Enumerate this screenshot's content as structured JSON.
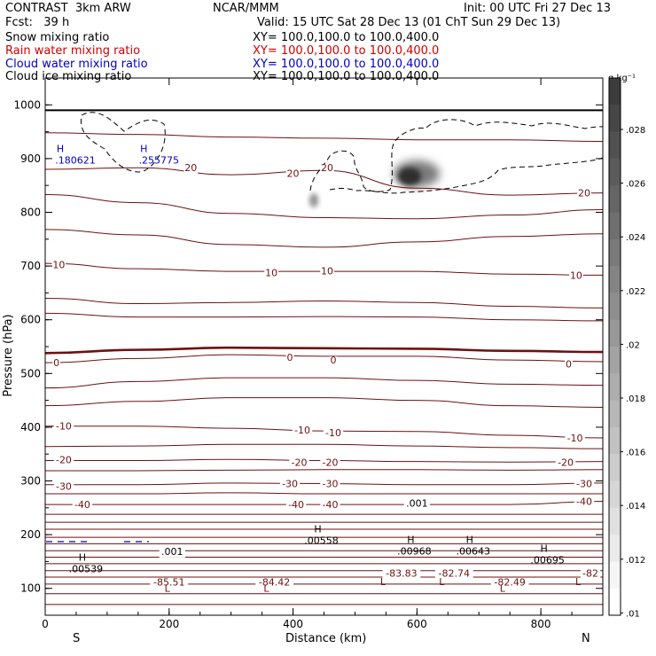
{
  "header": {
    "left1": "CONTRAST  3km ARW",
    "left2": "Fcst:   39 h",
    "center1": "NCAR/MMM",
    "init": "Init: 00 UTC Fri 27 Dec 13",
    "valid": "Valid: 15 UTC Sat 28 Dec 13 (01 ChT Sun 29 Dec 13)"
  },
  "fields": [
    {
      "name": "Snow mixing ratio",
      "xy": "XY= 100.0,100.0 to 100.0,400.0",
      "color": "#000000"
    },
    {
      "name": "Rain water mixing ratio",
      "xy": "XY= 100.0,100.0 to 100.0,400.0",
      "color": "#d00000"
    },
    {
      "name": "Cloud water mixing ratio",
      "xy": "XY= 100.0,100.0 to 100.0,400.0",
      "color": "#0000c8"
    },
    {
      "name": "Cloud ice mixing ratio",
      "xy": "XY= 100.0,100.0 to 100.0,400.0",
      "color": "#000000"
    }
  ],
  "chart_data": {
    "type": "contour",
    "xlabel": "Distance (km)",
    "ylabel": "Pressure (hPa)",
    "xlim": [
      0,
      900
    ],
    "ylim": [
      1050,
      50
    ],
    "x_ticks": [
      0,
      200,
      400,
      600,
      800
    ],
    "y_ticks": [
      100,
      200,
      300,
      400,
      500,
      600,
      700,
      800,
      900,
      1000
    ],
    "x_end_labels": {
      "left": "S",
      "right": "N"
    },
    "colorbar": {
      "unit": "g kg⁻¹",
      "ticks": [
        ".028",
        ".026",
        ".024",
        ".022",
        ".02",
        ".018",
        ".016",
        ".014",
        ".012",
        ".01"
      ]
    },
    "temperature_contour_labels": [
      {
        "text": "-85.51",
        "x": 200,
        "p": 112
      },
      {
        "text": "-84.42",
        "x": 370,
        "p": 112
      },
      {
        "text": "-83.83",
        "x": 575,
        "p": 128
      },
      {
        "text": "-82.74",
        "x": 660,
        "p": 128
      },
      {
        "text": "-82.49",
        "x": 750,
        "p": 112
      },
      {
        "text": "-82",
        "x": 880,
        "p": 128
      },
      {
        "text": "-40",
        "x": 60,
        "p": 256
      },
      {
        "text": "-40",
        "x": 405,
        "p": 256
      },
      {
        "text": "-40",
        "x": 460,
        "p": 256
      },
      {
        "text": "-40",
        "x": 870,
        "p": 262
      },
      {
        "text": "-30",
        "x": 30,
        "p": 290
      },
      {
        "text": "-30",
        "x": 395,
        "p": 295
      },
      {
        "text": "-30",
        "x": 460,
        "p": 295
      },
      {
        "text": "-30",
        "x": 870,
        "p": 295
      },
      {
        "text": "-20",
        "x": 30,
        "p": 340
      },
      {
        "text": "-20",
        "x": 410,
        "p": 335
      },
      {
        "text": "-20",
        "x": 460,
        "p": 335
      },
      {
        "text": "-20",
        "x": 840,
        "p": 335
      },
      {
        "text": "-10",
        "x": 30,
        "p": 402
      },
      {
        "text": "-10",
        "x": 415,
        "p": 395
      },
      {
        "text": "-10",
        "x": 465,
        "p": 390
      },
      {
        "text": "-10",
        "x": 855,
        "p": 380
      },
      {
        "text": "0",
        "x": 18,
        "p": 520
      },
      {
        "text": "0",
        "x": 395,
        "p": 530
      },
      {
        "text": "0",
        "x": 465,
        "p": 525
      },
      {
        "text": "0",
        "x": 845,
        "p": 518
      },
      {
        "text": "10",
        "x": 22,
        "p": 703
      },
      {
        "text": "10",
        "x": 365,
        "p": 688
      },
      {
        "text": "10",
        "x": 455,
        "p": 691
      },
      {
        "text": "10",
        "x": 857,
        "p": 683
      },
      {
        "text": "20",
        "x": 235,
        "p": 883
      },
      {
        "text": "20",
        "x": 400,
        "p": 873
      },
      {
        "text": "20",
        "x": 455,
        "p": 883
      },
      {
        "text": "20",
        "x": 870,
        "p": 836
      }
    ],
    "extrema_labels": [
      {
        "kind": "L",
        "x": 197,
        "p": 100
      },
      {
        "kind": "L",
        "x": 357,
        "p": 100
      },
      {
        "kind": "L",
        "x": 545,
        "p": 113
      },
      {
        "kind": "L",
        "x": 640,
        "p": 113
      },
      {
        "kind": "L",
        "x": 738,
        "p": 100
      },
      {
        "kind": "L",
        "x": 860,
        "p": 113
      },
      {
        "kind": "H",
        "value": ".00539",
        "x": 60,
        "p": 158
      },
      {
        "kind": "H",
        "value": ".00558",
        "x": 440,
        "p": 211
      },
      {
        "kind": "H",
        "value": ".00968",
        "x": 590,
        "p": 191
      },
      {
        "kind": "H",
        "value": ".00643",
        "x": 685,
        "p": 191
      },
      {
        "kind": "H",
        "value": ".00695",
        "x": 805,
        "p": 175
      }
    ],
    "ice_contour_labels": [
      {
        "text": ".001",
        "x": 205,
        "p": 169
      },
      {
        "text": ".001",
        "x": 600,
        "p": 259
      }
    ],
    "cloud_water_highs": [
      {
        "kind": "H",
        "value": ".180621",
        "x": 20,
        "p": 919
      },
      {
        "kind": "H",
        "value": ".255775",
        "x": 155,
        "p": 919
      }
    ],
    "isotherms_p_at": {
      "x": [
        0,
        150,
        300,
        450,
        600,
        750,
        900
      ],
      "lines": [
        [
          70,
          70,
          70,
          70,
          70,
          70,
          70
        ],
        [
          90,
          90,
          90,
          90,
          90,
          90,
          90
        ],
        [
          108,
          108,
          108,
          108,
          108,
          108,
          108
        ],
        [
          121,
          121,
          121,
          121,
          121,
          121,
          121
        ],
        [
          133,
          133,
          133,
          133,
          133,
          133,
          133
        ],
        [
          146,
          146,
          146,
          146,
          146,
          146,
          146
        ],
        [
          158,
          158,
          158,
          158,
          158,
          158,
          158
        ],
        [
          170,
          170,
          170,
          170,
          170,
          170,
          170
        ],
        [
          183,
          183,
          183,
          183,
          183,
          183,
          183
        ],
        [
          195,
          195,
          195,
          195,
          195,
          195,
          195
        ],
        [
          210,
          210,
          210,
          210,
          210,
          210,
          210
        ],
        [
          223,
          223,
          223,
          223,
          223,
          223,
          223
        ],
        [
          238,
          238,
          238,
          238,
          238,
          238,
          238
        ],
        [
          256,
          256,
          256,
          256,
          256,
          256,
          262
        ],
        [
          276,
          276,
          278,
          276,
          276,
          276,
          276
        ],
        [
          293,
          293,
          296,
          295,
          293,
          293,
          296
        ],
        [
          319,
          319,
          320,
          321,
          321,
          320,
          321
        ],
        [
          338,
          338,
          340,
          338,
          336,
          335,
          336
        ],
        [
          364,
          365,
          368,
          368,
          365,
          362,
          360
        ],
        [
          402,
          402,
          398,
          393,
          392,
          385,
          380
        ],
        [
          440,
          448,
          455,
          455,
          450,
          440,
          437
        ],
        [
          473,
          485,
          492,
          492,
          487,
          480,
          478
        ],
        [
          520,
          528,
          535,
          532,
          532,
          525,
          522
        ],
        [
          538,
          544,
          548,
          547,
          546,
          542,
          540
        ],
        [
          612,
          605,
          605,
          606,
          605,
          600,
          598
        ],
        [
          640,
          630,
          632,
          635,
          632,
          625,
          622
        ],
        [
          705,
          695,
          690,
          690,
          690,
          685,
          683
        ],
        [
          768,
          758,
          740,
          735,
          745,
          755,
          760
        ],
        [
          833,
          818,
          798,
          790,
          788,
          795,
          805
        ],
        [
          880,
          883,
          870,
          878,
          845,
          832,
          836
        ],
        [
          948,
          945,
          940,
          938,
          935,
          935,
          932
        ],
        [
          990,
          990,
          990,
          990,
          990,
          990,
          990
        ]
      ]
    }
  }
}
